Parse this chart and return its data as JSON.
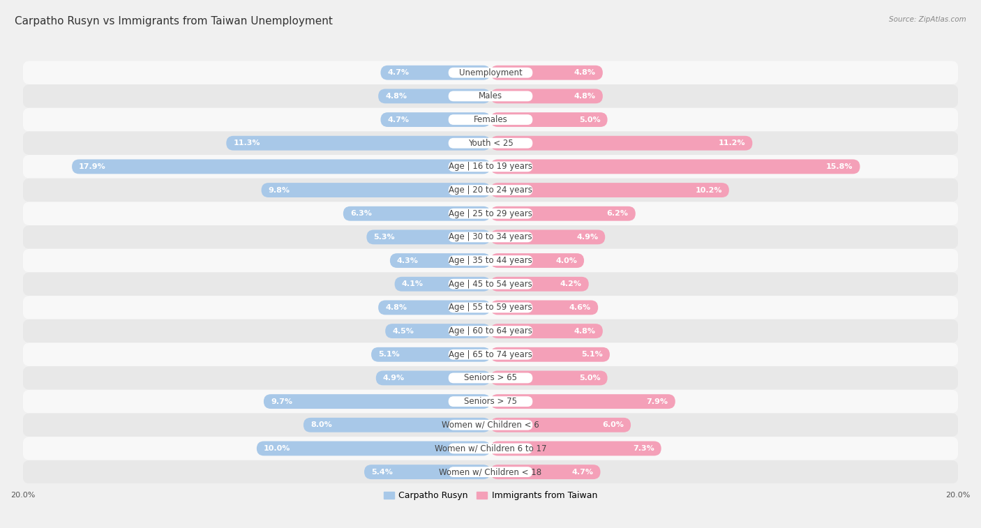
{
  "title": "Carpatho Rusyn vs Immigrants from Taiwan Unemployment",
  "source": "Source: ZipAtlas.com",
  "categories": [
    "Unemployment",
    "Males",
    "Females",
    "Youth < 25",
    "Age | 16 to 19 years",
    "Age | 20 to 24 years",
    "Age | 25 to 29 years",
    "Age | 30 to 34 years",
    "Age | 35 to 44 years",
    "Age | 45 to 54 years",
    "Age | 55 to 59 years",
    "Age | 60 to 64 years",
    "Age | 65 to 74 years",
    "Seniors > 65",
    "Seniors > 75",
    "Women w/ Children < 6",
    "Women w/ Children 6 to 17",
    "Women w/ Children < 18"
  ],
  "left_values": [
    4.7,
    4.8,
    4.7,
    11.3,
    17.9,
    9.8,
    6.3,
    5.3,
    4.3,
    4.1,
    4.8,
    4.5,
    5.1,
    4.9,
    9.7,
    8.0,
    10.0,
    5.4
  ],
  "right_values": [
    4.8,
    4.8,
    5.0,
    11.2,
    15.8,
    10.2,
    6.2,
    4.9,
    4.0,
    4.2,
    4.6,
    4.8,
    5.1,
    5.0,
    7.9,
    6.0,
    7.3,
    4.7
  ],
  "left_color": "#a8c8e8",
  "right_color": "#f4a0b8",
  "left_label": "Carpatho Rusyn",
  "right_label": "Immigrants from Taiwan",
  "max_val": 20.0,
  "bg_color": "#f0f0f0",
  "row_even_color": "#e8e8e8",
  "row_odd_color": "#f8f8f8",
  "title_fontsize": 11,
  "label_fontsize": 8.5,
  "value_fontsize": 8,
  "source_fontsize": 7.5
}
